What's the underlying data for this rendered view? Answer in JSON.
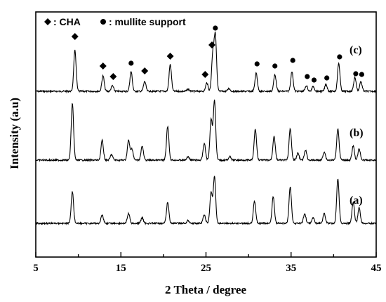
{
  "chart_data": {
    "type": "line",
    "xlabel": "2 Theta / degree",
    "ylabel": "Intensity (a.u)",
    "xlim": [
      5,
      45
    ],
    "xticks": [
      5,
      15,
      25,
      35,
      45
    ],
    "yticks_shown": false,
    "legend": {
      "placement": "top-left",
      "entries": [
        {
          "marker": "diamond",
          "label": ": CHA"
        },
        {
          "marker": "circle",
          "label": ": mullite support"
        }
      ]
    },
    "series": [
      {
        "name": "(c)",
        "baseline": 130,
        "peaks": [
          [
            9.6,
            58
          ],
          [
            12.9,
            22
          ],
          [
            14.0,
            8
          ],
          [
            16.2,
            28
          ],
          [
            17.8,
            14
          ],
          [
            20.8,
            38
          ],
          [
            22.9,
            3
          ],
          [
            25.1,
            12
          ],
          [
            25.8,
            52
          ],
          [
            26.1,
            78
          ],
          [
            27.7,
            4
          ],
          [
            30.9,
            26
          ],
          [
            33.1,
            24
          ],
          [
            35.1,
            28
          ],
          [
            36.8,
            8
          ],
          [
            37.6,
            7
          ],
          [
            39.1,
            10
          ],
          [
            40.6,
            40
          ],
          [
            42.5,
            20
          ],
          [
            43.2,
            14
          ]
        ]
      },
      {
        "name": "(b)",
        "baseline": 228,
        "peaks": [
          [
            9.3,
            80
          ],
          [
            12.8,
            28
          ],
          [
            13.9,
            8
          ],
          [
            15.9,
            28
          ],
          [
            16.3,
            16
          ],
          [
            17.5,
            20
          ],
          [
            20.5,
            48
          ],
          [
            22.9,
            5
          ],
          [
            24.8,
            24
          ],
          [
            25.6,
            58
          ],
          [
            26.0,
            85
          ],
          [
            27.8,
            5
          ],
          [
            30.8,
            44
          ],
          [
            33.0,
            34
          ],
          [
            34.9,
            44
          ],
          [
            35.8,
            10
          ],
          [
            36.7,
            14
          ],
          [
            38.9,
            12
          ],
          [
            40.5,
            45
          ],
          [
            42.3,
            20
          ],
          [
            43.0,
            16
          ]
        ]
      },
      {
        "name": "(a)",
        "baseline": 318,
        "peaks": [
          [
            9.3,
            45
          ],
          [
            12.8,
            12
          ],
          [
            15.9,
            14
          ],
          [
            17.5,
            8
          ],
          [
            20.5,
            30
          ],
          [
            22.9,
            4
          ],
          [
            24.8,
            12
          ],
          [
            25.6,
            44
          ],
          [
            26.0,
            66
          ],
          [
            30.7,
            32
          ],
          [
            32.9,
            38
          ],
          [
            34.9,
            52
          ],
          [
            36.6,
            14
          ],
          [
            37.6,
            8
          ],
          [
            38.9,
            14
          ],
          [
            40.5,
            64
          ],
          [
            42.3,
            30
          ],
          [
            43.0,
            22
          ]
        ]
      }
    ],
    "markers": [
      {
        "x": 9.6,
        "y": 52,
        "shape": "diamond"
      },
      {
        "x": 12.9,
        "y": 94,
        "shape": "diamond"
      },
      {
        "x": 14.1,
        "y": 109,
        "shape": "diamond"
      },
      {
        "x": 16.2,
        "y": 90,
        "shape": "circle"
      },
      {
        "x": 17.8,
        "y": 101,
        "shape": "diamond"
      },
      {
        "x": 20.8,
        "y": 80,
        "shape": "diamond"
      },
      {
        "x": 24.9,
        "y": 106,
        "shape": "diamond"
      },
      {
        "x": 25.7,
        "y": 64,
        "shape": "diamond"
      },
      {
        "x": 26.1,
        "y": 40,
        "shape": "circle"
      },
      {
        "x": 31.0,
        "y": 91,
        "shape": "circle"
      },
      {
        "x": 33.1,
        "y": 94,
        "shape": "circle"
      },
      {
        "x": 35.2,
        "y": 86,
        "shape": "circle"
      },
      {
        "x": 36.9,
        "y": 109,
        "shape": "circle"
      },
      {
        "x": 37.7,
        "y": 114,
        "shape": "circle"
      },
      {
        "x": 39.2,
        "y": 111,
        "shape": "circle"
      },
      {
        "x": 40.7,
        "y": 81,
        "shape": "circle"
      },
      {
        "x": 42.6,
        "y": 105,
        "shape": "circle"
      },
      {
        "x": 43.3,
        "y": 106,
        "shape": "circle"
      }
    ]
  }
}
